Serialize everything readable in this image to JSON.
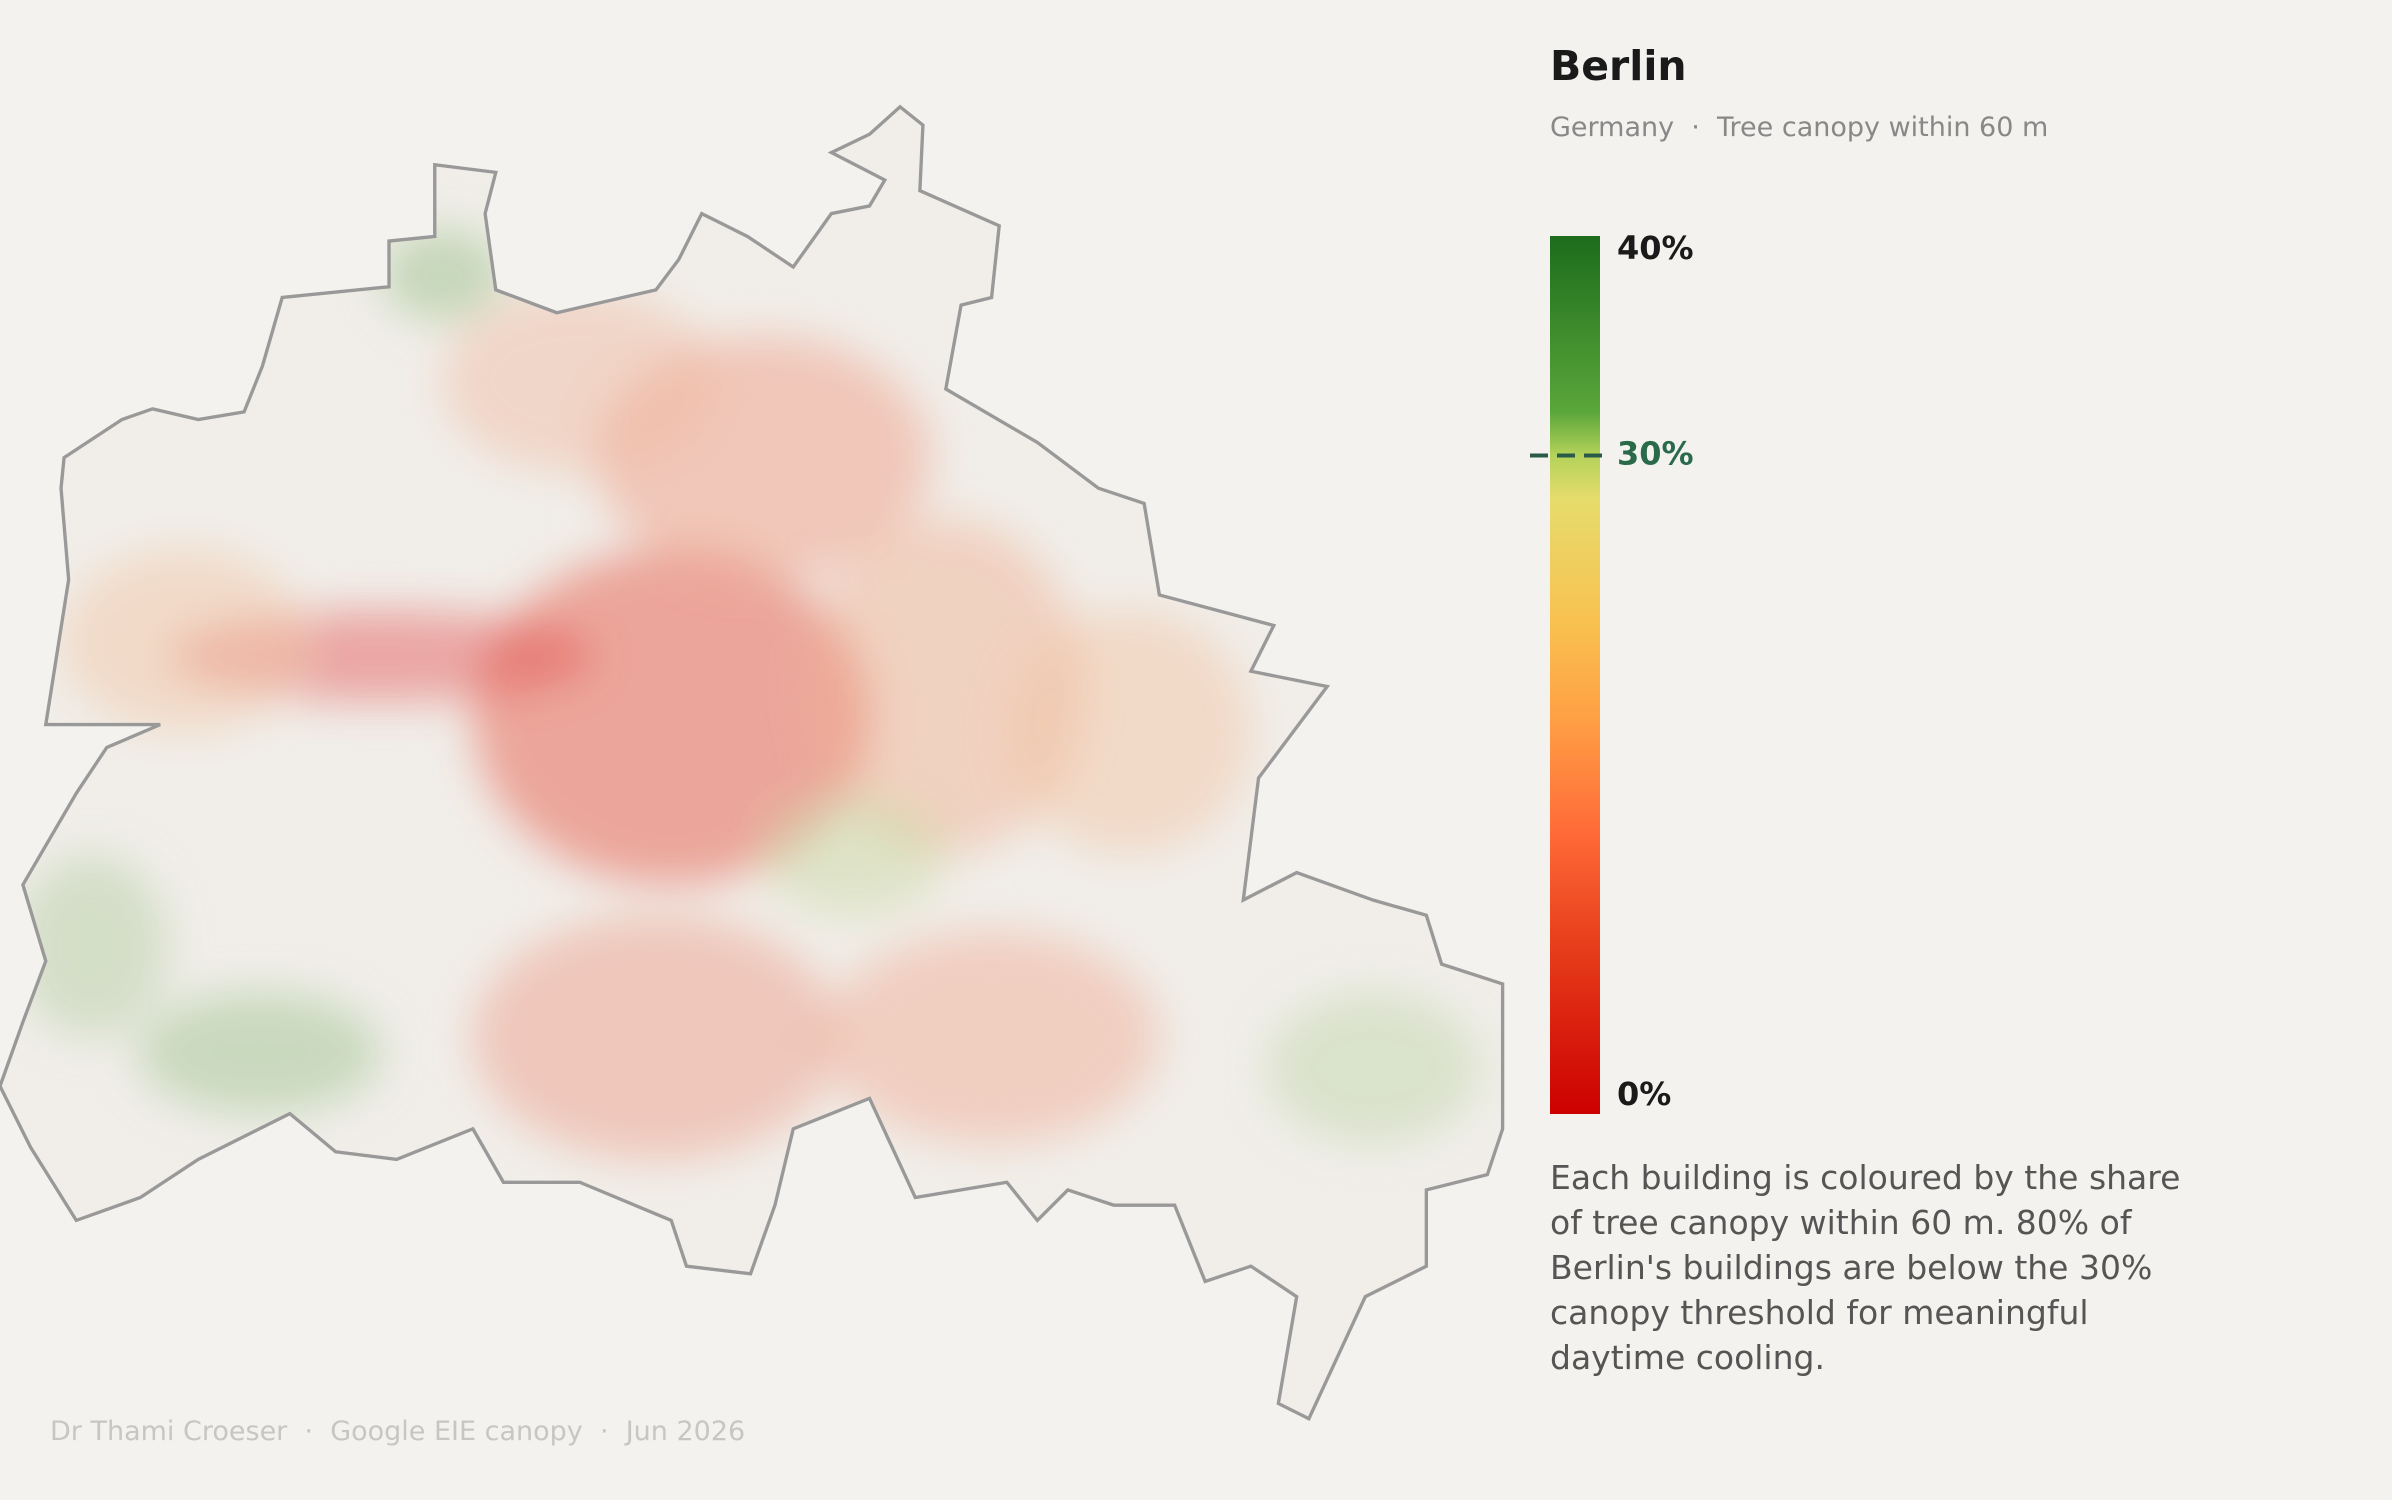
{
  "header": {
    "title": "Berlin",
    "subtitle": "Germany  ·  Tree canopy within 60 m"
  },
  "legend": {
    "lim": [
      0,
      40
    ],
    "ticks": [
      {
        "value": 40,
        "label": "40%"
      },
      {
        "value": 0,
        "label": "0%"
      }
    ],
    "threshold": {
      "value": 30,
      "label": "30%"
    }
  },
  "description": "Each building is coloured by the share of tree canopy within 60 m. 80% of Berlin's buildings are below the 30% canopy threshold for meaningful daytime cooling.",
  "footer": "Dr Thami Croeser  ·  Google EIE canopy  ·  Jun 2026"
}
